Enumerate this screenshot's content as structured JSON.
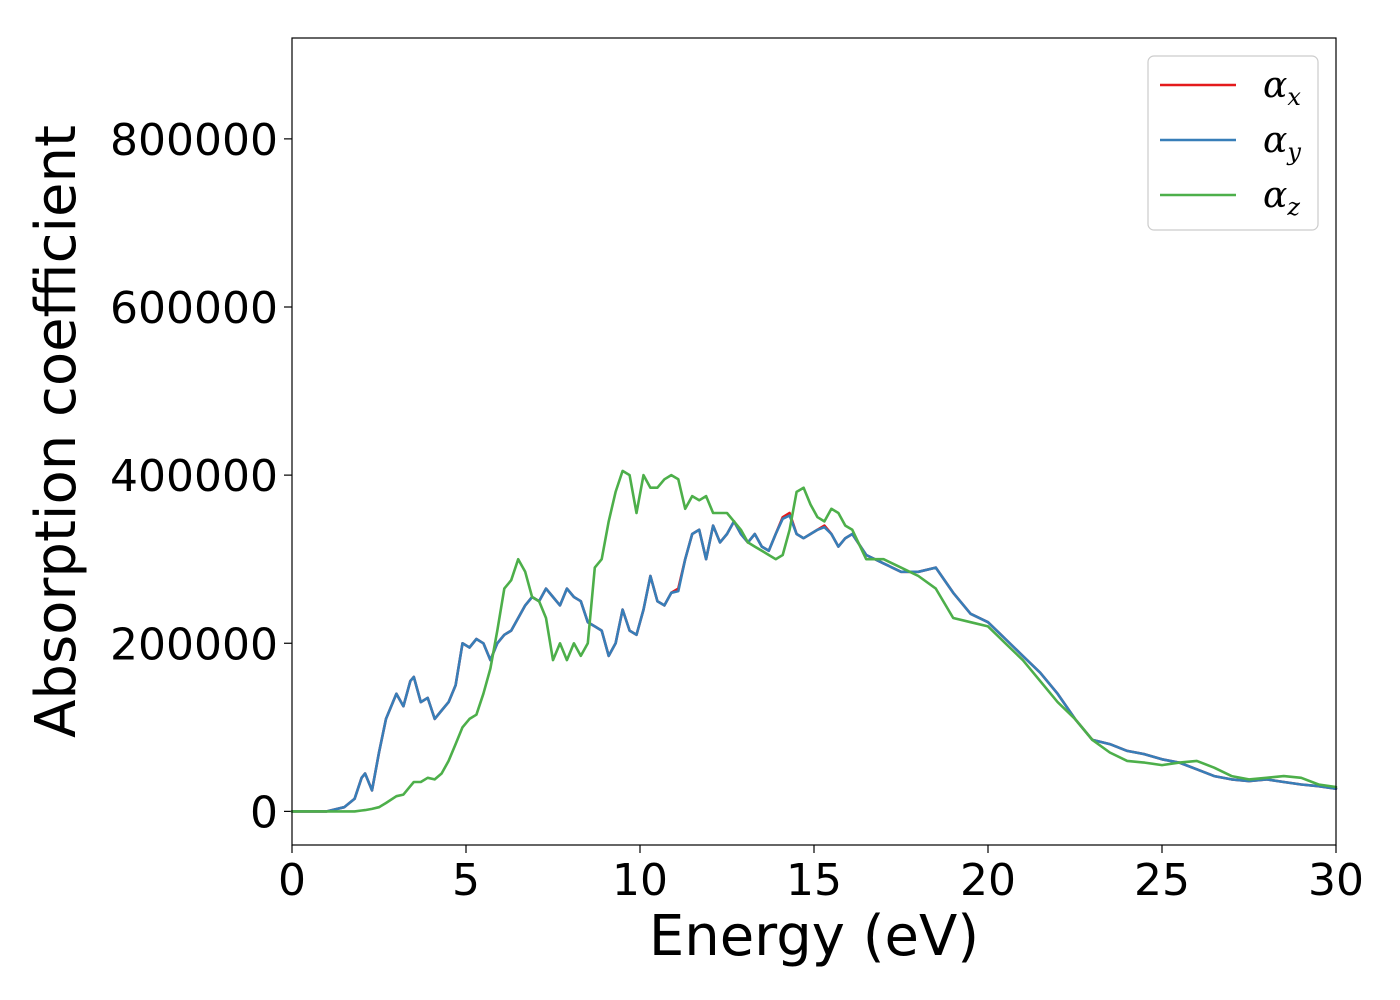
{
  "chart_data": {
    "type": "line",
    "title": "",
    "xlabel": "Energy (eV)",
    "ylabel": "Absorption coefficient",
    "xlim": [
      0,
      30
    ],
    "ylim": [
      -40000,
      920000
    ],
    "xticks": [
      "0",
      "5",
      "10",
      "15",
      "20",
      "25",
      "30"
    ],
    "yticks": [
      "0",
      "200000",
      "400000",
      "600000",
      "800000"
    ],
    "grid": false,
    "legend_position": "top-right",
    "x": [
      0,
      0.5,
      1,
      1.5,
      1.8,
      2,
      2.1,
      2.3,
      2.5,
      2.7,
      3,
      3.2,
      3.4,
      3.5,
      3.7,
      3.9,
      4.1,
      4.3,
      4.5,
      4.7,
      4.9,
      5.1,
      5.3,
      5.5,
      5.7,
      5.9,
      6.1,
      6.3,
      6.5,
      6.7,
      6.9,
      7.1,
      7.3,
      7.5,
      7.7,
      7.9,
      8.1,
      8.3,
      8.5,
      8.7,
      8.9,
      9.1,
      9.3,
      9.5,
      9.7,
      9.9,
      10.1,
      10.3,
      10.5,
      10.7,
      10.9,
      11.1,
      11.3,
      11.5,
      11.7,
      11.9,
      12.1,
      12.3,
      12.5,
      12.7,
      12.9,
      13.1,
      13.3,
      13.5,
      13.7,
      13.9,
      14.1,
      14.3,
      14.5,
      14.7,
      14.9,
      15.1,
      15.3,
      15.5,
      15.7,
      15.9,
      16.1,
      16.5,
      17,
      17.5,
      18,
      18.5,
      19,
      19.5,
      20,
      20.5,
      21,
      21.5,
      22,
      22.5,
      23,
      23.5,
      24,
      24.5,
      25,
      25.5,
      26,
      26.5,
      27,
      27.5,
      28,
      28.5,
      29,
      29.5,
      30
    ],
    "series": [
      {
        "name": "α_x",
        "label_base": "α",
        "label_sub": "x",
        "color": "#e41a1c",
        "values": [
          0,
          0,
          0,
          5000,
          15000,
          40000,
          45000,
          25000,
          70000,
          110000,
          140000,
          125000,
          155000,
          160000,
          130000,
          135000,
          110000,
          120000,
          130000,
          150000,
          200000,
          195000,
          205000,
          200000,
          180000,
          200000,
          210000,
          215000,
          230000,
          245000,
          255000,
          250000,
          265000,
          255000,
          245000,
          265000,
          255000,
          250000,
          225000,
          220000,
          215000,
          185000,
          200000,
          240000,
          215000,
          210000,
          240000,
          280000,
          250000,
          245000,
          260000,
          265000,
          300000,
          330000,
          335000,
          300000,
          340000,
          320000,
          330000,
          345000,
          330000,
          320000,
          330000,
          315000,
          310000,
          330000,
          350000,
          355000,
          330000,
          325000,
          330000,
          335000,
          340000,
          330000,
          315000,
          325000,
          330000,
          305000,
          295000,
          285000,
          285000,
          290000,
          260000,
          235000,
          225000,
          205000,
          185000,
          165000,
          140000,
          110000,
          85000,
          80000,
          72000,
          68000,
          62000,
          58000,
          50000,
          42000,
          38000,
          36000,
          38000,
          35000,
          32000,
          30000,
          27000
        ]
      },
      {
        "name": "α_y",
        "label_base": "α",
        "label_sub": "y",
        "color": "#377eb8",
        "values": [
          0,
          0,
          0,
          5000,
          15000,
          40000,
          45000,
          25000,
          70000,
          110000,
          140000,
          125000,
          155000,
          160000,
          130000,
          135000,
          110000,
          120000,
          130000,
          150000,
          200000,
          195000,
          205000,
          200000,
          180000,
          200000,
          210000,
          215000,
          230000,
          245000,
          255000,
          250000,
          265000,
          255000,
          245000,
          265000,
          255000,
          250000,
          225000,
          220000,
          215000,
          185000,
          200000,
          240000,
          215000,
          210000,
          240000,
          280000,
          250000,
          245000,
          260000,
          262000,
          300000,
          330000,
          335000,
          300000,
          340000,
          320000,
          330000,
          345000,
          330000,
          320000,
          330000,
          315000,
          310000,
          330000,
          348000,
          352000,
          330000,
          325000,
          330000,
          335000,
          338000,
          330000,
          315000,
          325000,
          330000,
          305000,
          295000,
          285000,
          285000,
          290000,
          260000,
          235000,
          225000,
          205000,
          185000,
          165000,
          140000,
          110000,
          85000,
          80000,
          72000,
          68000,
          62000,
          58000,
          50000,
          42000,
          38000,
          36000,
          38000,
          35000,
          32000,
          30000,
          27000
        ]
      },
      {
        "name": "α_z",
        "label_base": "α",
        "label_sub": "z",
        "color": "#4daf4a",
        "values": [
          0,
          0,
          0,
          0,
          0,
          1000,
          1500,
          3000,
          5000,
          10000,
          18000,
          20000,
          30000,
          35000,
          35000,
          40000,
          38000,
          45000,
          60000,
          80000,
          100000,
          110000,
          115000,
          140000,
          170000,
          215000,
          265000,
          275000,
          300000,
          285000,
          255000,
          250000,
          230000,
          180000,
          200000,
          180000,
          200000,
          185000,
          200000,
          290000,
          300000,
          345000,
          380000,
          405000,
          400000,
          355000,
          400000,
          385000,
          385000,
          395000,
          400000,
          395000,
          360000,
          375000,
          370000,
          375000,
          355000,
          355000,
          355000,
          345000,
          335000,
          320000,
          315000,
          310000,
          305000,
          300000,
          305000,
          335000,
          380000,
          385000,
          365000,
          350000,
          345000,
          360000,
          355000,
          340000,
          335000,
          300000,
          300000,
          290000,
          280000,
          265000,
          230000,
          225000,
          220000,
          200000,
          180000,
          155000,
          130000,
          110000,
          85000,
          70000,
          60000,
          58000,
          55000,
          58000,
          60000,
          52000,
          42000,
          38000,
          40000,
          42000,
          40000,
          32000,
          29000
        ]
      }
    ]
  }
}
